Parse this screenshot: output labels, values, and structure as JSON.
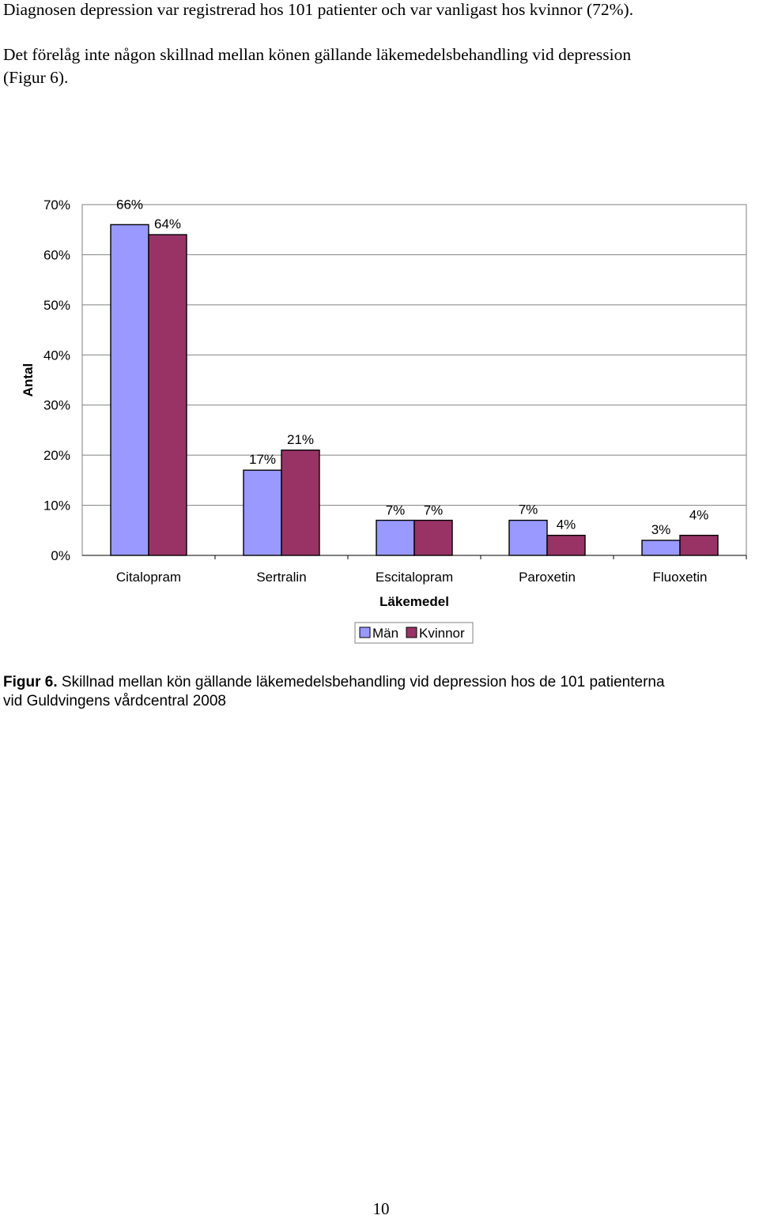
{
  "text": {
    "para1": "Diagnosen depression var registrerad hos 101 patienter och var vanligast hos kvinnor (72%).",
    "para2_line1": "Det förelåg inte någon skillnad mellan könen gällande läkemedelsbehandling vid depression",
    "para2_line2": "(Figur 6).",
    "caption_label": "Figur 6.",
    "caption_text1": " Skillnad mellan kön gällande läkemedelsbehandling vid depression hos de 101 patienterna",
    "caption_text2": "vid Guldvingens vårdcentral 2008",
    "page_number": "10"
  },
  "chart_data": {
    "type": "bar",
    "title": "",
    "xlabel": "Läkemedel",
    "ylabel": "Antal",
    "ylim": [
      0,
      70
    ],
    "yticks": [
      "0%",
      "10%",
      "20%",
      "30%",
      "40%",
      "50%",
      "60%",
      "70%"
    ],
    "grid": true,
    "legend_position": "bottom",
    "categories": [
      "Citalopram",
      "Sertralin",
      "Escitalopram",
      "Paroxetin",
      "Fluoxetin"
    ],
    "series": [
      {
        "name": "Män",
        "color": "#9999ff",
        "values": [
          66,
          17,
          7,
          7,
          3
        ],
        "labels": [
          "66%",
          "17%",
          "7%",
          "7%",
          "3%"
        ]
      },
      {
        "name": "Kvinnor",
        "color": "#993366",
        "values": [
          64,
          21,
          7,
          4,
          4
        ],
        "labels": [
          "64%",
          "21%",
          "7%",
          "4%",
          "4%"
        ]
      }
    ]
  }
}
